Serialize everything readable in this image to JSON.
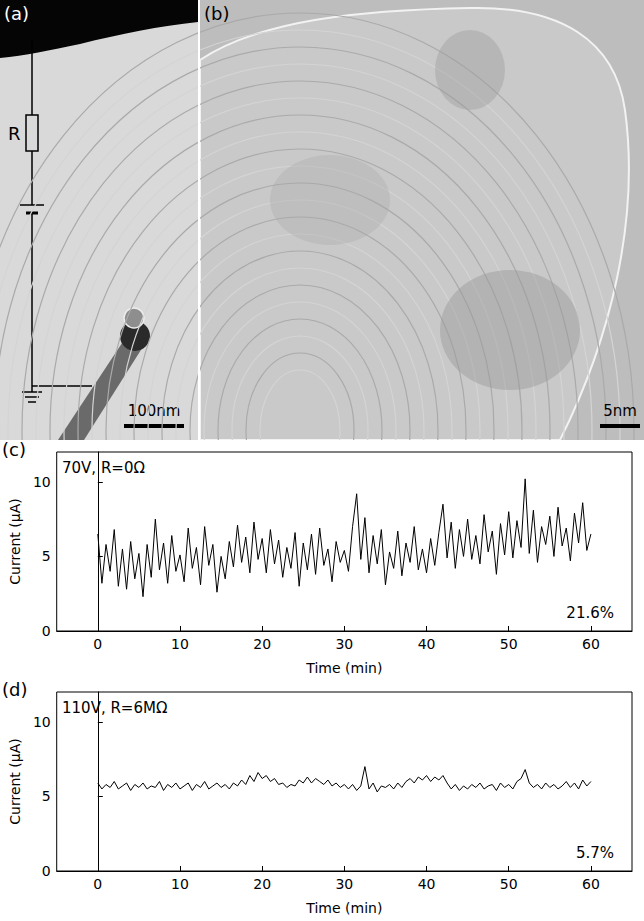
{
  "panels": {
    "a": {
      "label": "(a)",
      "resistor_label": "R",
      "scale_bar": "100nm"
    },
    "b": {
      "label": "(b)",
      "scale_bar": "5nm"
    }
  },
  "chart_data": [
    {
      "type": "line",
      "panel": "(c)",
      "annotations": [
        "70V, R=0Ω",
        "21.6%"
      ],
      "x_label": "Time (min)",
      "y_label": "Current (μA)",
      "color": "#000000",
      "grid": false,
      "xlim": [
        -5,
        65
      ],
      "xticks": [
        0,
        10,
        20,
        30,
        40,
        50,
        60
      ],
      "ylim": [
        0,
        12
      ],
      "yticks": [
        0,
        5,
        10
      ],
      "x": [
        0,
        0.5,
        1,
        1.5,
        2,
        2.5,
        3,
        3.5,
        4,
        4.5,
        5,
        5.5,
        6,
        6.5,
        7,
        7.5,
        8,
        8.5,
        9,
        9.5,
        10,
        10.5,
        11,
        11.5,
        12,
        12.5,
        13,
        13.5,
        14,
        14.5,
        15,
        15.5,
        16,
        16.5,
        17,
        17.5,
        18,
        18.5,
        19,
        19.5,
        20,
        20.5,
        21,
        21.5,
        22,
        22.5,
        23,
        23.5,
        24,
        24.5,
        25,
        25.5,
        26,
        26.5,
        27,
        27.5,
        28,
        28.5,
        29,
        29.5,
        30,
        30.5,
        31,
        31.5,
        32,
        32.5,
        33,
        33.5,
        34,
        34.5,
        35,
        35.5,
        36,
        36.5,
        37,
        37.5,
        38,
        38.5,
        39,
        39.5,
        40,
        40.5,
        41,
        41.5,
        42,
        42.5,
        43,
        43.5,
        44,
        44.5,
        45,
        45.5,
        46,
        46.5,
        47,
        47.5,
        48,
        48.5,
        49,
        49.5,
        50,
        50.5,
        51,
        51.5,
        52,
        52.5,
        53,
        53.5,
        54,
        54.5,
        55,
        55.5,
        56,
        56.5,
        57,
        57.5,
        58,
        58.5,
        59,
        59.5,
        60
      ],
      "values": [
        6.5,
        3.2,
        5.8,
        4.0,
        6.8,
        3.0,
        5.5,
        2.8,
        6.0,
        3.5,
        5.2,
        2.3,
        5.8,
        3.6,
        7.5,
        4.1,
        5.9,
        3.2,
        6.4,
        4.0,
        5.1,
        3.3,
        6.9,
        4.2,
        5.6,
        3.1,
        7.0,
        4.4,
        5.8,
        2.6,
        5.0,
        3.5,
        6.0,
        4.3,
        7.1,
        4.6,
        6.3,
        3.9,
        7.3,
        4.8,
        6.2,
        3.9,
        6.8,
        4.5,
        6.1,
        3.6,
        5.6,
        4.2,
        6.6,
        3.0,
        5.9,
        4.1,
        6.5,
        3.8,
        6.9,
        4.4,
        5.5,
        3.3,
        6.0,
        4.6,
        5.4,
        4.0,
        7.0,
        9.2,
        4.8,
        7.6,
        3.9,
        6.4,
        4.5,
        6.8,
        3.1,
        5.3,
        4.2,
        6.7,
        3.7,
        5.9,
        4.6,
        7.0,
        4.1,
        5.5,
        3.9,
        6.2,
        4.4,
        6.6,
        8.5,
        4.9,
        7.3,
        4.2,
        6.8,
        5.0,
        7.5,
        4.8,
        6.4,
        4.5,
        7.8,
        5.3,
        6.7,
        3.8,
        7.2,
        5.1,
        8.0,
        4.9,
        7.4,
        5.6,
        10.2,
        5.2,
        8.1,
        4.6,
        7.0,
        5.8,
        7.7,
        5.0,
        8.3,
        5.7,
        6.9,
        4.7,
        7.9,
        5.9,
        8.6,
        5.4,
        6.5
      ]
    },
    {
      "type": "line",
      "panel": "(d)",
      "annotations": [
        "110V, R=6MΩ",
        "5.7%"
      ],
      "x_label": "Time (min)",
      "y_label": "Current (μA)",
      "color": "#000000",
      "grid": false,
      "xlim": [
        -5,
        65
      ],
      "xticks": [
        0,
        10,
        20,
        30,
        40,
        50,
        60
      ],
      "ylim": [
        0,
        12
      ],
      "yticks": [
        0,
        5,
        10
      ],
      "x": [
        0,
        0.5,
        1,
        1.5,
        2,
        2.5,
        3,
        3.5,
        4,
        4.5,
        5,
        5.5,
        6,
        6.5,
        7,
        7.5,
        8,
        8.5,
        9,
        9.5,
        10,
        10.5,
        11,
        11.5,
        12,
        12.5,
        13,
        13.5,
        14,
        14.5,
        15,
        15.5,
        16,
        16.5,
        17,
        17.5,
        18,
        18.5,
        19,
        19.5,
        20,
        20.5,
        21,
        21.5,
        22,
        22.5,
        23,
        23.5,
        24,
        24.5,
        25,
        25.5,
        26,
        26.5,
        27,
        27.5,
        28,
        28.5,
        29,
        29.5,
        30,
        30.5,
        31,
        31.5,
        32,
        32.5,
        33,
        33.5,
        34,
        34.5,
        35,
        35.5,
        36,
        36.5,
        37,
        37.5,
        38,
        38.5,
        39,
        39.5,
        40,
        40.5,
        41,
        41.5,
        42,
        42.5,
        43,
        43.5,
        44,
        44.5,
        45,
        45.5,
        46,
        46.5,
        47,
        47.5,
        48,
        48.5,
        49,
        49.5,
        50,
        50.5,
        51,
        51.5,
        52,
        52.5,
        53,
        53.5,
        54,
        54.5,
        55,
        55.5,
        56,
        56.5,
        57,
        57.5,
        58,
        58.5,
        59,
        59.5,
        60
      ],
      "values": [
        5.9,
        5.5,
        5.8,
        5.6,
        6.0,
        5.5,
        5.7,
        5.9,
        5.4,
        5.8,
        5.6,
        5.9,
        5.5,
        5.7,
        5.6,
        6.0,
        5.4,
        5.8,
        5.6,
        5.9,
        5.5,
        5.7,
        5.9,
        5.4,
        5.8,
        5.6,
        6.0,
        5.5,
        5.7,
        5.9,
        5.6,
        5.8,
        5.5,
        5.9,
        5.7,
        6.1,
        5.8,
        6.4,
        6.0,
        6.6,
        6.2,
        6.4,
        6.0,
        6.2,
        5.8,
        5.9,
        5.6,
        5.8,
        5.7,
        6.1,
        5.9,
        6.3,
        5.9,
        6.2,
        6.0,
        5.8,
        6.1,
        5.7,
        5.9,
        5.6,
        5.8,
        5.5,
        5.8,
        5.4,
        5.7,
        7.0,
        5.5,
        5.9,
        5.3,
        5.7,
        5.6,
        5.8,
        5.5,
        5.9,
        5.6,
        6.0,
        6.2,
        5.9,
        6.3,
        6.1,
        6.4,
        6.0,
        6.3,
        6.1,
        6.4,
        5.9,
        5.5,
        5.8,
        5.4,
        5.7,
        5.5,
        5.8,
        5.6,
        5.9,
        5.5,
        5.7,
        5.8,
        5.4,
        5.9,
        5.6,
        5.8,
        5.5,
        6.0,
        6.2,
        6.8,
        5.9,
        5.6,
        5.8,
        5.5,
        5.9,
        5.6,
        5.8,
        5.5,
        5.7,
        6.0,
        5.6,
        5.9,
        5.5,
        6.1,
        5.7,
        6.0
      ]
    }
  ]
}
